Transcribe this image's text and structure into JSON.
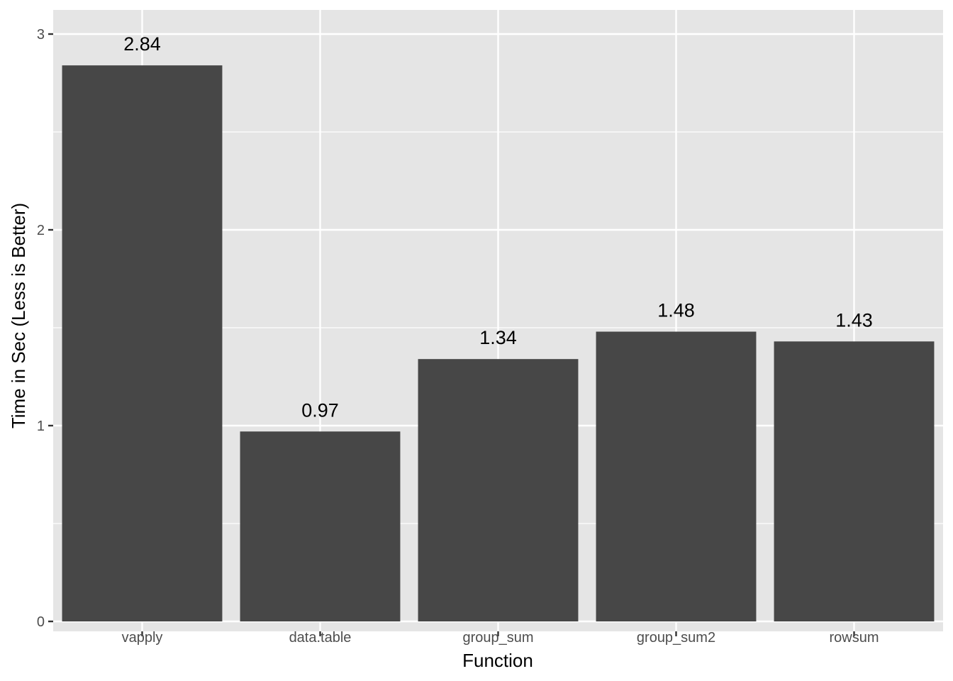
{
  "chart_data": {
    "type": "bar",
    "categories": [
      "vapply",
      "data.table",
      "group_sum",
      "group_sum2",
      "rowsum"
    ],
    "values": [
      2.84,
      0.97,
      1.34,
      1.48,
      1.43
    ],
    "data_labels": [
      "2.84",
      "0.97",
      "1.34",
      "1.48",
      "1.43"
    ],
    "title": "",
    "xlabel": "Function",
    "ylabel": "Time in Sec (Less is Better)",
    "ylim": [
      0,
      3.12
    ],
    "yticks": [
      0,
      1,
      2,
      3
    ],
    "ytick_labels": [
      "0",
      "1",
      "2",
      "3"
    ],
    "grid": true,
    "legend": "none",
    "colors": {
      "panel_background": "#e5e5e5",
      "grid": "#ffffff",
      "bar": "#474747",
      "tick": "#333333"
    }
  }
}
